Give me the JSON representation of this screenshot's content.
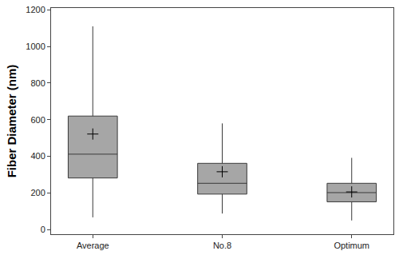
{
  "chart_data": {
    "type": "box",
    "y_label": "Fiber Diameter (nm)",
    "categories": [
      "Average",
      "No.8",
      "Optimum"
    ],
    "whisker_low": [
      67,
      88,
      50
    ],
    "q1": [
      282,
      194,
      152
    ],
    "median": [
      412,
      253,
      202
    ],
    "q3": [
      620,
      362,
      253
    ],
    "whisker_high": [
      1110,
      580,
      392
    ],
    "mean": [
      522,
      316,
      206
    ],
    "color": "#a6a6a6",
    "marker": "cross",
    "ylim": [
      -25,
      1210
    ],
    "yticks": [
      0,
      200,
      400,
      600,
      800,
      1000,
      1200
    ],
    "grid": false
  }
}
